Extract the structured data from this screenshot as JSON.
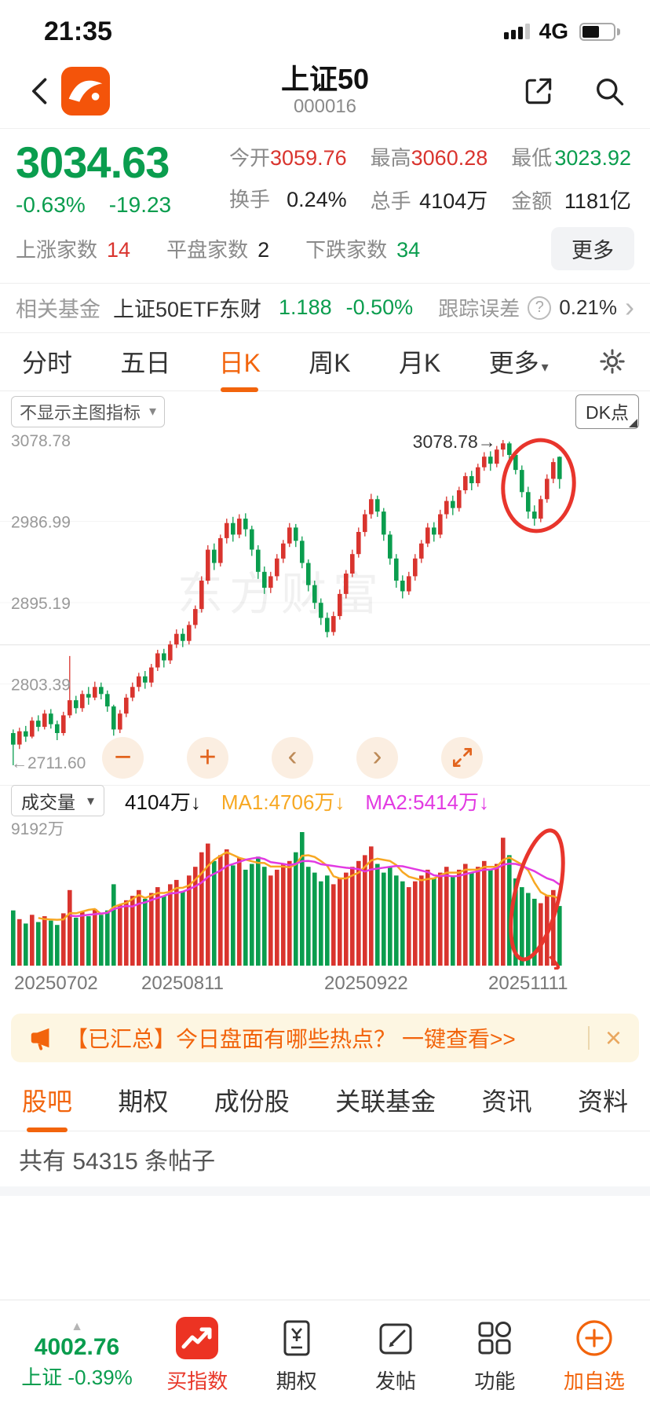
{
  "status_bar": {
    "time": "21:35",
    "network": "4G"
  },
  "header": {
    "title": "上证50",
    "code": "000016"
  },
  "colors": {
    "up_red": "#d9342e",
    "down_green": "#0a9d4e",
    "accent_orange": "#f2640c",
    "ma1_orange": "#f7a823",
    "ma2_magenta": "#e23ae2",
    "annotation_red": "#e8352c"
  },
  "icons": {
    "dropdown": "▾",
    "question": "?",
    "chevron_right": "›",
    "minus": "−",
    "plus": "+",
    "prev": "‹",
    "next": "›",
    "close": "×",
    "caret_up": "▲"
  },
  "quote": {
    "price": "3034.63",
    "change_percent": "-0.63%",
    "change_amount": "-19.23",
    "stats": [
      {
        "label": "今开",
        "value": "3059.76",
        "color": "red"
      },
      {
        "label": "最高",
        "value": "3060.28",
        "color": "red"
      },
      {
        "label": "最低",
        "value": "3023.92",
        "color": "green"
      },
      {
        "label": "换手",
        "value": "0.24%",
        "color": "dark"
      },
      {
        "label": "总手",
        "value": "4104万",
        "color": "dark"
      },
      {
        "label": "金额",
        "value": "1181亿",
        "color": "dark"
      }
    ],
    "breadth": [
      {
        "label": "上涨家数",
        "value": "14",
        "color": "red"
      },
      {
        "label": "平盘家数",
        "value": "2",
        "color": "dark"
      },
      {
        "label": "下跌家数",
        "value": "34",
        "color": "green"
      }
    ],
    "more_label": "更多"
  },
  "fund": {
    "label": "相关基金",
    "name": "上证50ETF东财",
    "price": "1.188",
    "change": "-0.50%",
    "tracking_label": "跟踪误差",
    "tracking_value": "0.21%"
  },
  "period_tabs": [
    "分时",
    "五日",
    "日K",
    "周K",
    "月K",
    "更多"
  ],
  "chart": {
    "indicator_selector": "不显示主图指标",
    "dk_button": "DK点",
    "watermark": "东方财富",
    "high_annotation": "3078.78→",
    "y_axis_labels": [
      "3078.78",
      "2986.99",
      "2895.19",
      "2803.39",
      "←2711.60"
    ]
  },
  "chart_data": {
    "type": "candlestick+volume",
    "title": "上证50 日K",
    "y_ticks": [
      3078.78,
      2986.99,
      2895.19,
      2803.39,
      2711.6
    ],
    "grid_mid": 2847.5,
    "x_ticks": [
      "20250702",
      "20250811",
      "20250922",
      "20251111"
    ],
    "high_marker": 3078.78,
    "low_marker": 2711.6,
    "volume_max": 9192,
    "volume_unit": "万",
    "candles": [
      [
        2748,
        2752,
        2711.6,
        2735
      ],
      [
        2735,
        2754,
        2730,
        2750
      ],
      [
        2750,
        2756,
        2738,
        2744
      ],
      [
        2744,
        2766,
        2742,
        2762
      ],
      [
        2762,
        2768,
        2750,
        2755
      ],
      [
        2755,
        2774,
        2752,
        2770
      ],
      [
        2770,
        2775,
        2753,
        2758
      ],
      [
        2758,
        2762,
        2740,
        2748
      ],
      [
        2748,
        2772,
        2745,
        2768
      ],
      [
        2768,
        2835,
        2765,
        2785
      ],
      [
        2785,
        2790,
        2770,
        2776
      ],
      [
        2776,
        2796,
        2772,
        2792
      ],
      [
        2792,
        2800,
        2780,
        2788
      ],
      [
        2788,
        2806,
        2785,
        2800
      ],
      [
        2800,
        2805,
        2786,
        2792
      ],
      [
        2792,
        2796,
        2772,
        2778
      ],
      [
        2778,
        2780,
        2745,
        2752
      ],
      [
        2752,
        2774,
        2748,
        2770
      ],
      [
        2770,
        2792,
        2766,
        2788
      ],
      [
        2788,
        2805,
        2784,
        2800
      ],
      [
        2800,
        2816,
        2795,
        2812
      ],
      [
        2812,
        2818,
        2798,
        2805
      ],
      [
        2805,
        2826,
        2800,
        2822
      ],
      [
        2822,
        2842,
        2818,
        2838
      ],
      [
        2838,
        2843,
        2822,
        2830
      ],
      [
        2830,
        2852,
        2826,
        2848
      ],
      [
        2848,
        2865,
        2844,
        2860
      ],
      [
        2860,
        2866,
        2845,
        2852
      ],
      [
        2852,
        2874,
        2848,
        2870
      ],
      [
        2870,
        2892,
        2866,
        2888
      ],
      [
        2888,
        2925,
        2884,
        2920
      ],
      [
        2920,
        2960,
        2916,
        2955
      ],
      [
        2955,
        2962,
        2932,
        2940
      ],
      [
        2940,
        2972,
        2936,
        2968
      ],
      [
        2968,
        2990,
        2962,
        2985
      ],
      [
        2985,
        2992,
        2964,
        2972
      ],
      [
        2972,
        2995,
        2968,
        2990
      ],
      [
        2990,
        2996,
        2970,
        2978
      ],
      [
        2978,
        2982,
        2948,
        2955
      ],
      [
        2955,
        2960,
        2922,
        2930
      ],
      [
        2930,
        2936,
        2905,
        2912
      ],
      [
        2912,
        2930,
        2906,
        2925
      ],
      [
        2925,
        2950,
        2920,
        2945
      ],
      [
        2945,
        2966,
        2940,
        2962
      ],
      [
        2962,
        2985,
        2958,
        2980
      ],
      [
        2980,
        2984,
        2958,
        2965
      ],
      [
        2965,
        2970,
        2934,
        2940
      ],
      [
        2940,
        2944,
        2908,
        2915
      ],
      [
        2915,
        2920,
        2888,
        2895
      ],
      [
        2895,
        2900,
        2870,
        2878
      ],
      [
        2878,
        2884,
        2856,
        2862
      ],
      [
        2862,
        2885,
        2858,
        2880
      ],
      [
        2880,
        2910,
        2876,
        2905
      ],
      [
        2905,
        2932,
        2900,
        2928
      ],
      [
        2928,
        2955,
        2924,
        2950
      ],
      [
        2950,
        2980,
        2946,
        2975
      ],
      [
        2975,
        3000,
        2970,
        2995
      ],
      [
        2995,
        3018,
        2990,
        3012
      ],
      [
        3012,
        3016,
        2992,
        2998
      ],
      [
        2998,
        3002,
        2965,
        2972
      ],
      [
        2972,
        2976,
        2938,
        2945
      ],
      [
        2945,
        2950,
        2912,
        2920
      ],
      [
        2920,
        2926,
        2900,
        2908
      ],
      [
        2908,
        2930,
        2904,
        2925
      ],
      [
        2925,
        2950,
        2920,
        2945
      ],
      [
        2945,
        2966,
        2940,
        2962
      ],
      [
        2962,
        2985,
        2958,
        2980
      ],
      [
        2980,
        2986,
        2964,
        2972
      ],
      [
        2972,
        3000,
        2968,
        2995
      ],
      [
        2995,
        3015,
        2990,
        3010
      ],
      [
        3010,
        3016,
        2994,
        3002
      ],
      [
        3002,
        3026,
        2998,
        3022
      ],
      [
        3022,
        3042,
        3018,
        3038
      ],
      [
        3038,
        3044,
        3022,
        3030
      ],
      [
        3030,
        3052,
        3026,
        3048
      ],
      [
        3048,
        3065,
        3044,
        3060
      ],
      [
        3060,
        3066,
        3044,
        3052
      ],
      [
        3052,
        3072,
        3048,
        3068
      ],
      [
        3068,
        3078.78,
        3060,
        3075
      ],
      [
        3075,
        3077,
        3055,
        3062
      ],
      [
        3062,
        3066,
        3040,
        3045
      ],
      [
        3045,
        3050,
        3014,
        3020
      ],
      [
        3020,
        3026,
        2990,
        2998
      ],
      [
        2998,
        3005,
        2982,
        2990
      ],
      [
        2990,
        3016,
        2986,
        3012
      ],
      [
        3012,
        3040,
        3008,
        3035
      ],
      [
        3035,
        3058,
        3030,
        3053.86
      ],
      [
        3059.76,
        3060.28,
        3023.92,
        3034.63
      ]
    ],
    "volumes": [
      3800,
      3200,
      2900,
      3500,
      3000,
      3400,
      3100,
      2800,
      3600,
      5200,
      3300,
      3700,
      3400,
      3900,
      3500,
      3800,
      5600,
      4200,
      4500,
      4800,
      5200,
      4600,
      5000,
      5400,
      4800,
      5600,
      5900,
      5100,
      6200,
      6800,
      7800,
      8400,
      7200,
      7600,
      8000,
      6900,
      7400,
      6600,
      7000,
      7500,
      6800,
      6200,
      6600,
      7000,
      7200,
      7800,
      9192,
      6800,
      6400,
      5800,
      6200,
      5600,
      6000,
      6400,
      6800,
      7200,
      7600,
      8200,
      7000,
      6400,
      6800,
      6200,
      5800,
      5400,
      5800,
      6200,
      6600,
      6000,
      6400,
      6800,
      6200,
      6600,
      7000,
      6400,
      6800,
      7200,
      6600,
      7000,
      8800,
      7600,
      6000,
      5400,
      5000,
      4600,
      4300,
      4800,
      5200,
      4104
    ]
  },
  "volume_panel": {
    "selector": "成交量",
    "value": "4104万↓",
    "ma1": "MA1:4706万↓",
    "ma2": "MA2:5414万↓",
    "axis_label": "9192万"
  },
  "banner": {
    "text": "【已汇总】今日盘面有哪些热点？",
    "link": "一键查看>>"
  },
  "section_tabs": [
    "股吧",
    "期权",
    "成份股",
    "关联基金",
    "资讯",
    "资料"
  ],
  "posts": {
    "count_text": "共有 54315 条帖子"
  },
  "toolbar": {
    "index_value": "4002.76",
    "index_label": "上证 -0.39%",
    "items": [
      "买指数",
      "期权",
      "发帖",
      "功能",
      "加自选"
    ]
  }
}
